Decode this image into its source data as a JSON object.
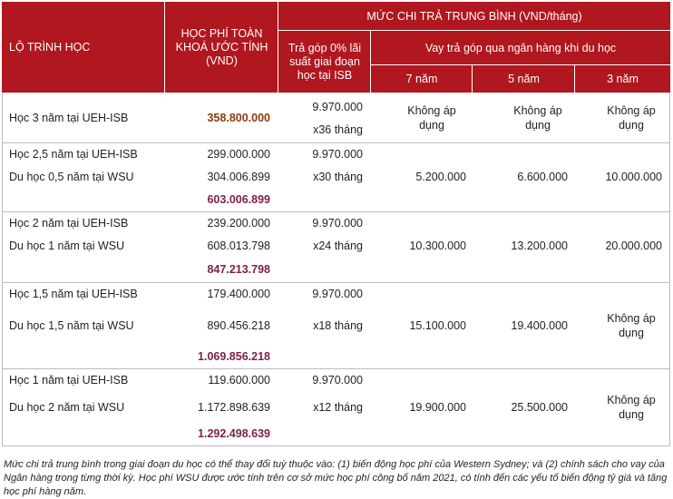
{
  "header": {
    "route": "LỘ TRÌNH HỌC",
    "fee": "HỌC PHÍ TOÀN KHOÁ ƯỚC TÍNH (VND)",
    "payment": "MỨC CHI TRẢ TRUNG BÌNH (VND/tháng)",
    "installment": "Trả góp 0% lãi suất giai đoạn học tại ISB",
    "loan": "Vay trả góp qua ngân hàng khi du học",
    "y7": "7 năm",
    "y5": "5 năm",
    "y3": "3 năm"
  },
  "blocks": [
    {
      "lines": [
        {
          "name": "Học 3 năm tại UEH-ISB",
          "fee": ""
        }
      ],
      "total": "358.800.000",
      "installment": "9.970.000",
      "months": "x36 tháng",
      "y7": "Không áp dụng",
      "y5": "Không áp dụng",
      "y3": "Không áp dụng"
    },
    {
      "lines": [
        {
          "name": "Học 2,5 năm tại UEH-ISB",
          "fee": "299.000.000"
        },
        {
          "name": "Du học 0,5 năm tại WSU",
          "fee": "304.006.899"
        }
      ],
      "total": "603.006.899",
      "installment": "9.970.000",
      "months": "x30 tháng",
      "y7": "5.200.000",
      "y5": "6.600.000",
      "y3": "10.000.000"
    },
    {
      "lines": [
        {
          "name": "Học 2 năm tại UEH-ISB",
          "fee": "239.200.000"
        },
        {
          "name": "Du học 1 năm tại WSU",
          "fee": "608.013.798"
        }
      ],
      "total": "847.213.798",
      "installment": "9.970.000",
      "months": "x24 tháng",
      "y7": "10.300.000",
      "y5": "13.200.000",
      "y3": "20.000.000"
    },
    {
      "lines": [
        {
          "name": "Học 1,5 năm tại UEH-ISB",
          "fee": "179.400.000"
        },
        {
          "name": "Du học 1,5 năm tại WSU",
          "fee": "890.456.218"
        }
      ],
      "total": "1.069.856.218",
      "installment": "9.970.000",
      "months": "x18 tháng",
      "y7": "15.100.000",
      "y5": "19.400.000",
      "y3": "Không áp dụng"
    },
    {
      "lines": [
        {
          "name": "Học 1 năm tại UEH-ISB",
          "fee": "119.600.000"
        },
        {
          "name": "Du học 2 năm tại WSU",
          "fee": "1.172.898.639"
        }
      ],
      "total": "1.292.498.639",
      "installment": "9.970.000",
      "months": "x12 tháng",
      "y7": "19.900.000",
      "y5": "25.500.000",
      "y3": "Không áp dụng"
    }
  ],
  "footnote": "Mức chi trả trung bình trong giai đoạn du học có thể thay đổi tuỳ thuộc vào: (1) biến động học phí của Western Sydney; và (2) chính sách cho vay của Ngân hàng trong từng thời kỳ. Học phí WSU được ước tính trên cơ sở mức học phí công bố năm 2021, có tính đến các yếu tố biến động tỷ giá và tăng học phí hàng năm.",
  "colors": {
    "header_bg": "#b0171f",
    "total_gold": "#8a3c10",
    "total_plum": "#7b2246"
  }
}
